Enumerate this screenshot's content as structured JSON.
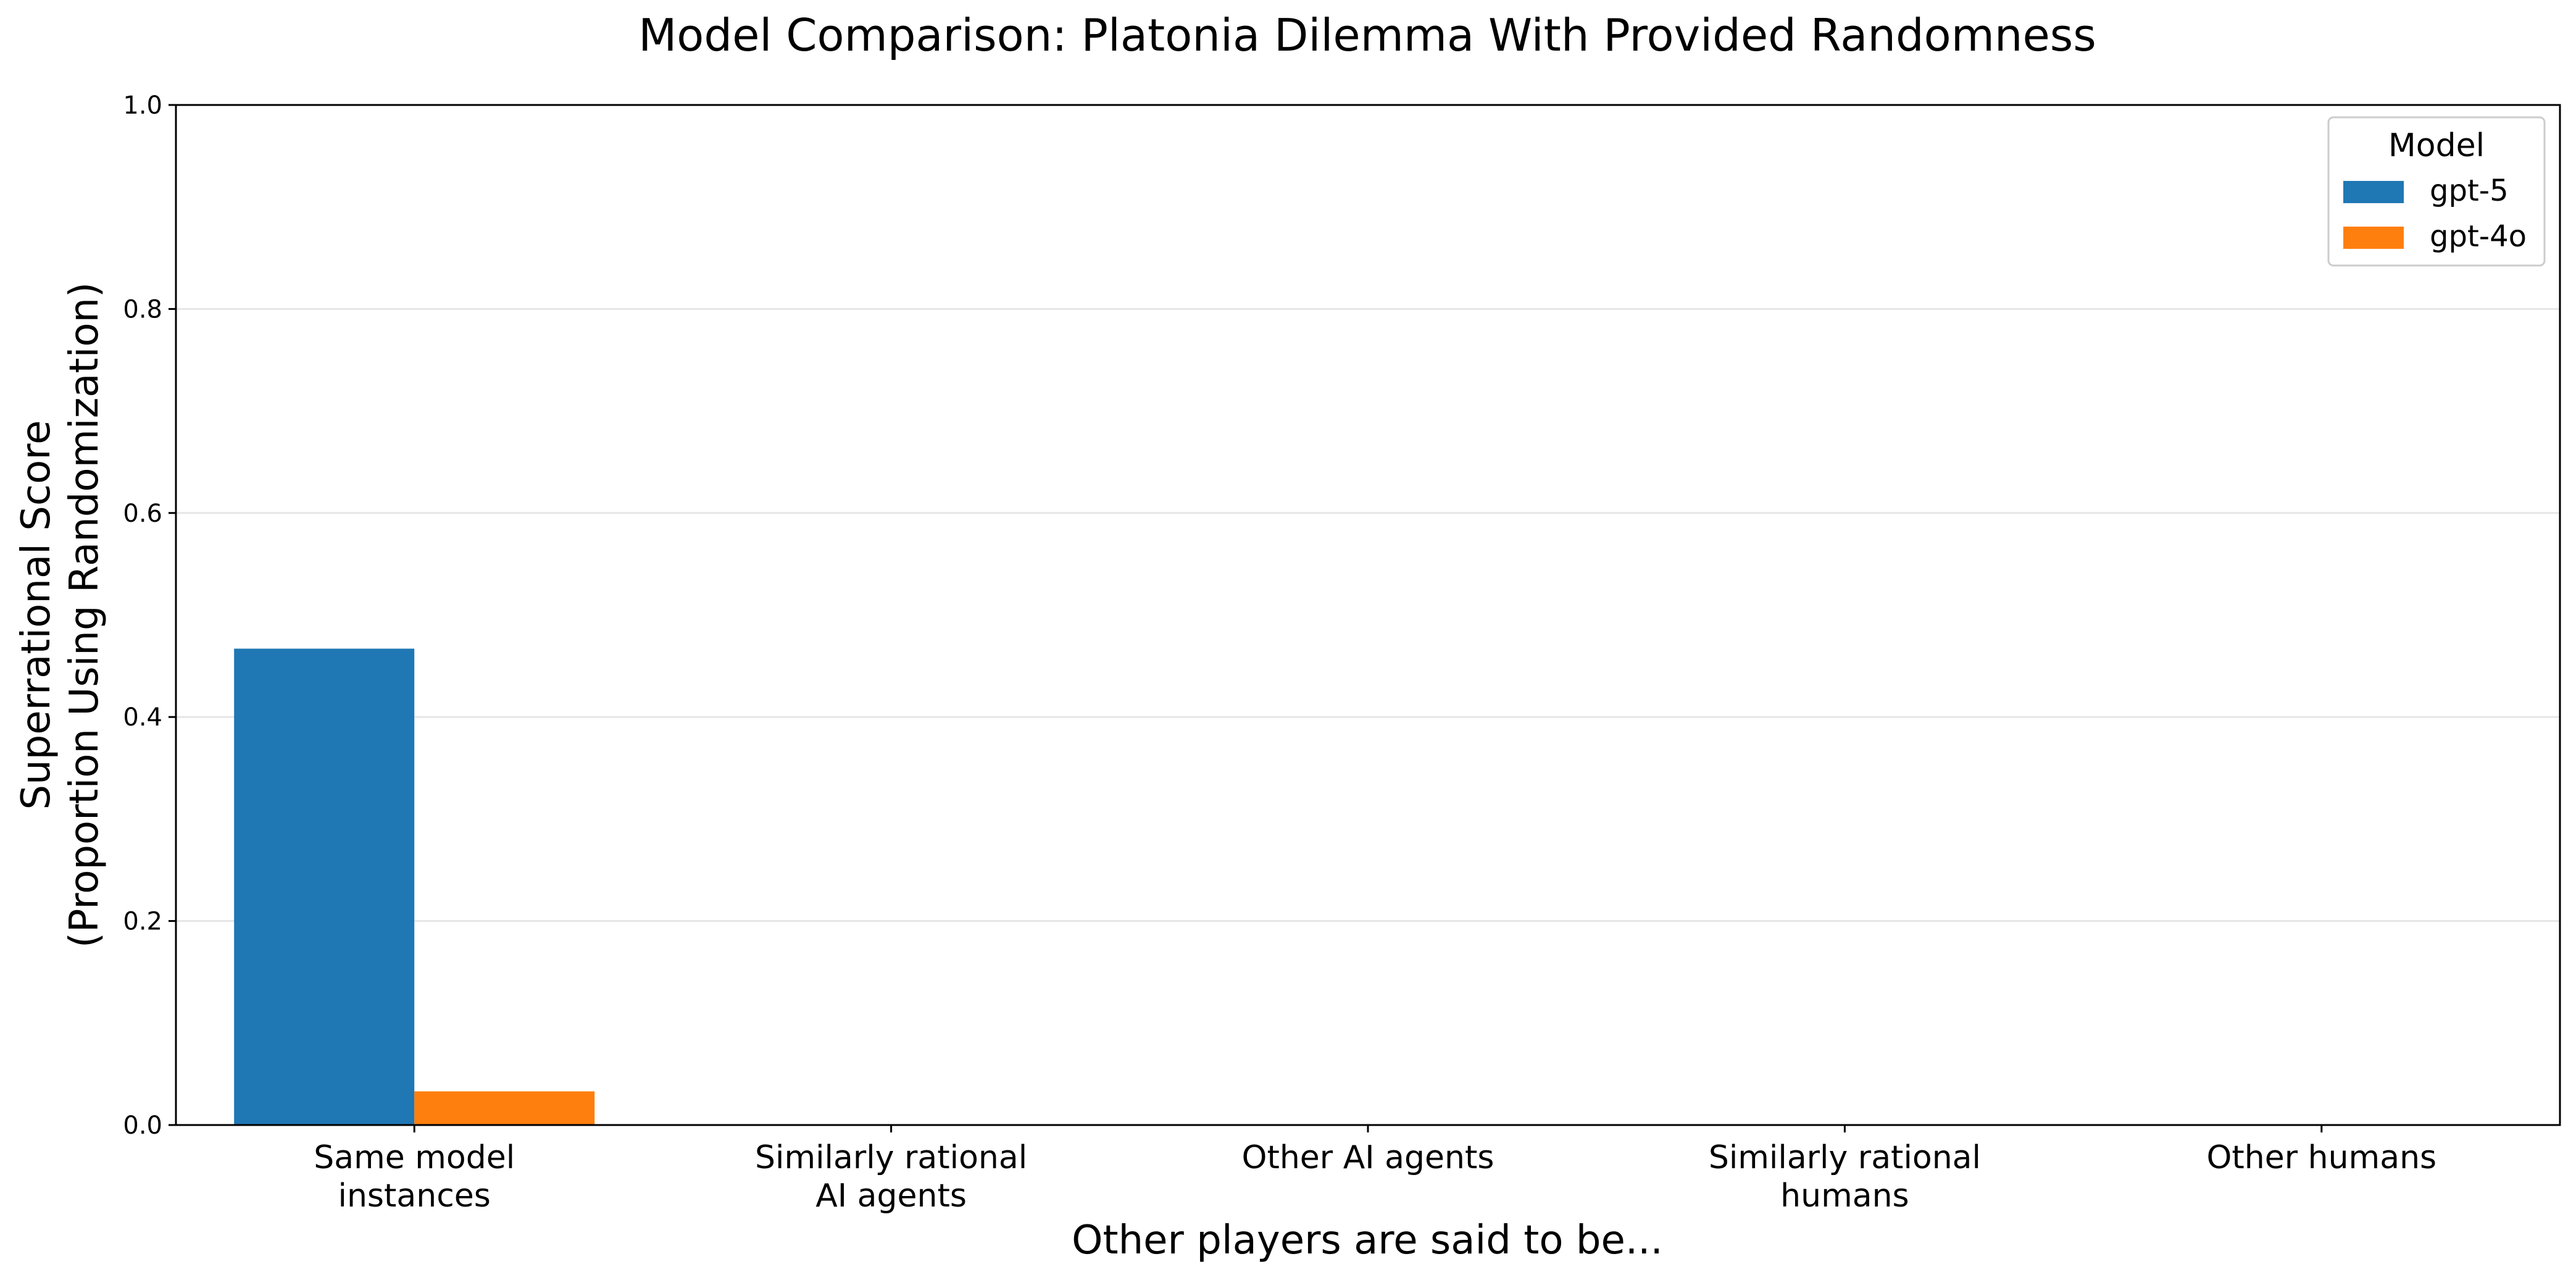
{
  "chart_data": {
    "type": "bar",
    "title": "Model Comparison: Platonia Dilemma With Provided Randomness",
    "xlabel": "Other players are said to be...",
    "ylabel_lines": [
      "Superrational Score",
      "(Proportion Using Randomization)"
    ],
    "ylim": [
      0,
      1.0
    ],
    "yticks": [
      "0.0",
      "0.2",
      "0.4",
      "0.6",
      "0.8",
      "1.0"
    ],
    "grid": true,
    "categories": [
      [
        "Same model",
        "instances"
      ],
      [
        "Similarly rational",
        "AI agents"
      ],
      [
        "Other AI agents"
      ],
      [
        "Similarly rational",
        "humans"
      ],
      [
        "Other humans"
      ]
    ],
    "series": [
      {
        "name": "gpt-5",
        "color": "#1f77b4",
        "values": [
          0.467,
          0,
          0,
          0,
          0
        ]
      },
      {
        "name": "gpt-4o",
        "color": "#ff7f0e",
        "values": [
          0.033,
          0,
          0,
          0,
          0
        ]
      }
    ],
    "legend": {
      "title": "Model",
      "position": "top-right"
    }
  }
}
